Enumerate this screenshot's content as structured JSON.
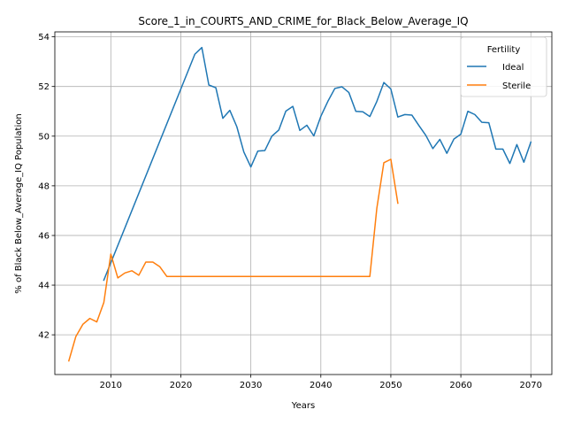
{
  "chart_data": {
    "type": "line",
    "title": "Score_1_in_COURTS_AND_CRIME_for_Black_Below_Average_IQ",
    "xlabel": "Years",
    "ylabel": "% of Black Below_Average_IQ Population",
    "xlim": [
      2002,
      2073
    ],
    "ylim": [
      40.4,
      54.2
    ],
    "xticks": [
      2010,
      2020,
      2030,
      2040,
      2050,
      2060,
      2070
    ],
    "yticks": [
      42,
      44,
      46,
      48,
      50,
      52,
      54
    ],
    "grid": true,
    "legend": {
      "title": "Fertility",
      "placement": "top-right"
    },
    "series": [
      {
        "name": "Ideal",
        "color": "#1f77b4",
        "x": [
          2009,
          2022,
          2023,
          2024,
          2025,
          2026,
          2027,
          2028,
          2029,
          2030,
          2031,
          2032,
          2033,
          2034,
          2035,
          2036,
          2037,
          2038,
          2039,
          2040,
          2041,
          2042,
          2043,
          2044,
          2045,
          2046,
          2047,
          2048,
          2049,
          2050,
          2051,
          2052,
          2053,
          2054,
          2055,
          2056,
          2057,
          2058,
          2059,
          2060,
          2061,
          2062,
          2063,
          2064,
          2065,
          2066,
          2067,
          2068,
          2069,
          2070
        ],
        "y": [
          44.2,
          53.3,
          53.57,
          52.06,
          51.95,
          50.72,
          51.04,
          50.38,
          49.36,
          48.76,
          49.4,
          49.42,
          50.0,
          50.25,
          51.01,
          51.2,
          50.23,
          50.44,
          50.01,
          50.8,
          51.4,
          51.92,
          51.99,
          51.76,
          51.0,
          50.98,
          50.79,
          51.4,
          52.16,
          51.9,
          50.77,
          50.87,
          50.85,
          50.43,
          50.03,
          49.5,
          49.87,
          49.31,
          49.88,
          50.08,
          51.0,
          50.87,
          50.56,
          50.54,
          49.48,
          49.48,
          48.9,
          49.66,
          48.95,
          49.76
        ]
      },
      {
        "name": "Sterile",
        "color": "#ff7f0e",
        "x": [
          2004,
          2005,
          2006,
          2007,
          2008,
          2009,
          2010,
          2011,
          2012,
          2013,
          2014,
          2015,
          2016,
          2017,
          2018,
          2047,
          2048,
          2049,
          2050,
          2051
        ],
        "y": [
          40.95,
          41.93,
          42.42,
          42.66,
          42.52,
          43.3,
          45.25,
          44.29,
          44.49,
          44.58,
          44.4,
          44.93,
          44.93,
          44.74,
          44.35,
          44.35,
          47.1,
          48.93,
          49.07,
          47.3
        ]
      }
    ]
  }
}
